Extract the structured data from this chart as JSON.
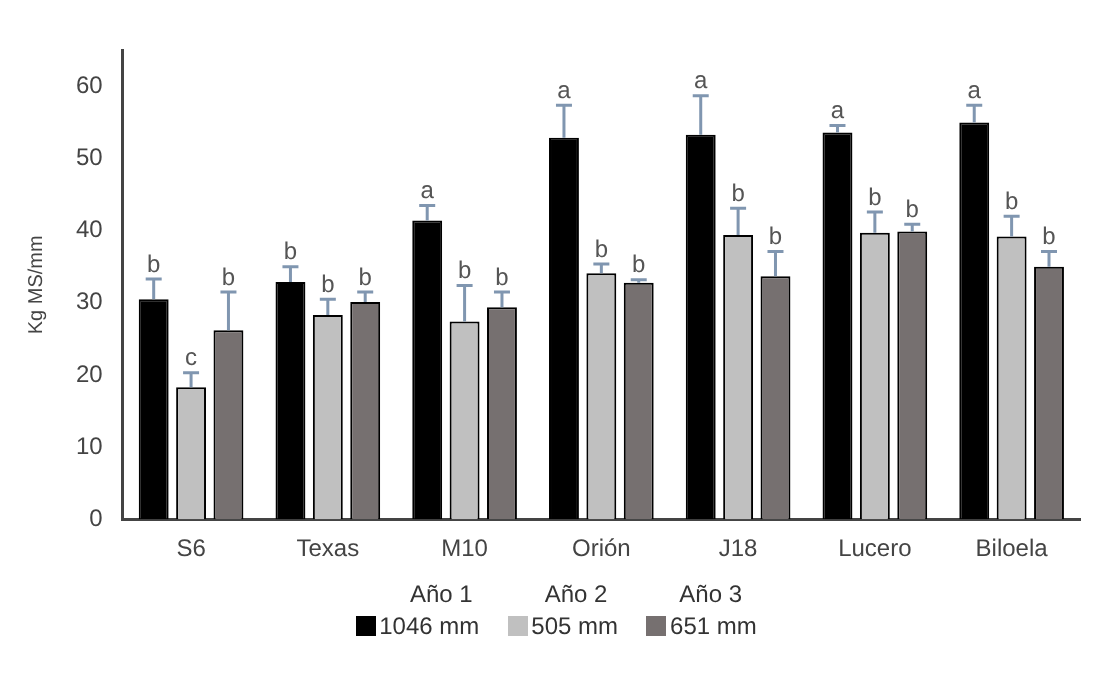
{
  "chart_data": {
    "type": "bar",
    "ylabel": "Kg MS/mm",
    "categories": [
      "S6",
      "Texas",
      "M10",
      "Orión",
      "J18",
      "Lucero",
      "Biloela"
    ],
    "series": [
      {
        "name": "1046 mm",
        "color": "#000000",
        "values": [
          30.5,
          32.9,
          41.4,
          52.9,
          53.3,
          53.6,
          55.0
        ],
        "errors": [
          [
            30.5,
            33.3
          ],
          [
            32.9,
            35.0
          ],
          [
            41.4,
            43.5
          ],
          [
            52.9,
            57.4
          ],
          [
            53.3,
            58.7
          ],
          [
            53.6,
            54.6
          ],
          [
            55.0,
            57.4
          ]
        ]
      },
      {
        "name": "505 mm",
        "color": "#c0c0c0",
        "values": [
          18.3,
          28.3,
          27.4,
          34.1,
          39.4,
          39.7,
          39.2
        ],
        "errors": [
          [
            18.3,
            20.3
          ],
          [
            28.3,
            30.5
          ],
          [
            27.4,
            32.4
          ],
          [
            34.1,
            35.4
          ],
          [
            39.4,
            43.1
          ],
          [
            39.7,
            42.6
          ],
          [
            39.2,
            42.0
          ]
        ]
      },
      {
        "name": "651 mm",
        "color": "#767070",
        "values": [
          26.2,
          30.1,
          29.4,
          32.8,
          33.7,
          39.9,
          35.0
        ],
        "errors": [
          [
            26.2,
            31.5
          ],
          [
            30.1,
            31.5
          ],
          [
            29.4,
            31.5
          ],
          [
            32.8,
            33.2
          ],
          [
            33.7,
            37.1
          ],
          [
            39.9,
            40.9
          ],
          [
            35.0,
            37.1
          ]
        ]
      }
    ],
    "annotations": [
      "b",
      "c",
      "b",
      "b",
      "b",
      "b",
      "a",
      "b",
      "b",
      "a",
      "b",
      "b",
      "a",
      "b",
      "b",
      "a",
      "b",
      "b",
      "a",
      "b",
      "b",
      "Año 1",
      "Año 2",
      "Año 3"
    ],
    "ylim": [
      0,
      65
    ],
    "yticks": [
      0,
      10,
      20,
      30,
      40,
      50,
      60
    ],
    "grid": false,
    "legend": "bottom"
  }
}
